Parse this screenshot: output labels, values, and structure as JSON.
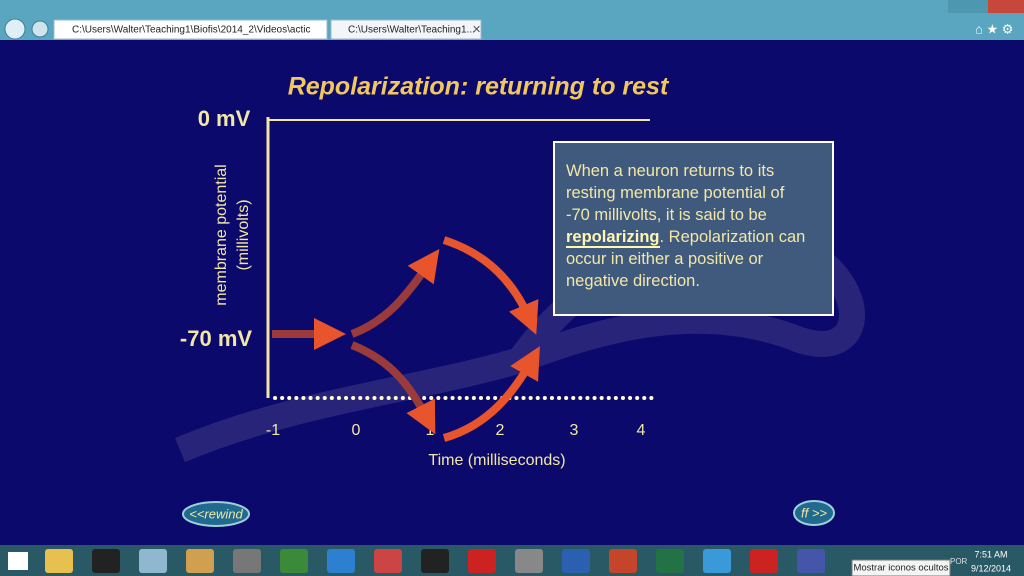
{
  "browser": {
    "address": "C:\\Users\\Walter\\Teaching1\\Biofis\\2014_2\\Videos\\actic",
    "tab": "C:\\Users\\Walter\\Teaching1..."
  },
  "slide": {
    "title": "Repolarization: returning to rest",
    "y_top_label": "0 mV",
    "y_rest_label": "-70 mV",
    "y_axis_title": [
      "membrane potential",
      "(millivolts)"
    ],
    "x_ticks": [
      -1,
      0,
      1,
      2,
      3,
      4
    ],
    "x_axis_title": "Time (milliseconds)",
    "info_box": {
      "lines": [
        "When a neuron returns to its",
        "resting membrane potential of",
        "-70 millivolts, it is said to be"
      ],
      "emphasis": "repolarizing",
      "after_emphasis": ".  Repolarization can",
      "tail": [
        "occur in either a positive or",
        "negative direction."
      ]
    },
    "rewind": "<<rewind",
    "forward": "ff >>"
  },
  "taskbar": {
    "tooltip": "Mostrar iconos ocultos",
    "lang": "POR",
    "time": "7:51 AM",
    "date": "9/12/2014"
  }
}
